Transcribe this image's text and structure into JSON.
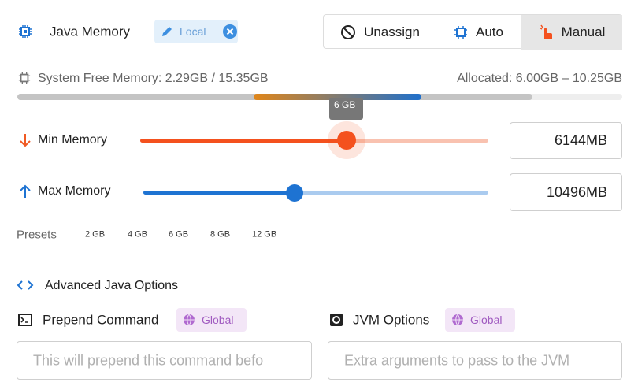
{
  "header": {
    "title": "Java Memory",
    "badge": "Local"
  },
  "modes": [
    "Unassign",
    "Auto",
    "Manual"
  ],
  "memory": {
    "system_free": "System Free Memory: 2.29GB / 15.35GB",
    "allocated": "Allocated: 6.00GB – 10.25GB",
    "tooltip": "6 GB"
  },
  "min_memory": {
    "label": "Min Memory",
    "value": 6144,
    "unit": "MB"
  },
  "max_memory": {
    "label": "Max Memory",
    "value": 10496,
    "unit": "MB"
  },
  "presets": {
    "label": "Presets",
    "options": [
      "2 GB",
      "4 GB",
      "6 GB",
      "8 GB",
      "12 GB"
    ]
  },
  "advanced": {
    "title": "Advanced Java Options",
    "prepend": {
      "label": "Prepend Command",
      "badge": "Global",
      "placeholder": "This will prepend this command befo"
    },
    "jvm": {
      "label": "JVM Options",
      "badge": "Global",
      "placeholder": "Extra arguments to pass to the JVM"
    }
  }
}
